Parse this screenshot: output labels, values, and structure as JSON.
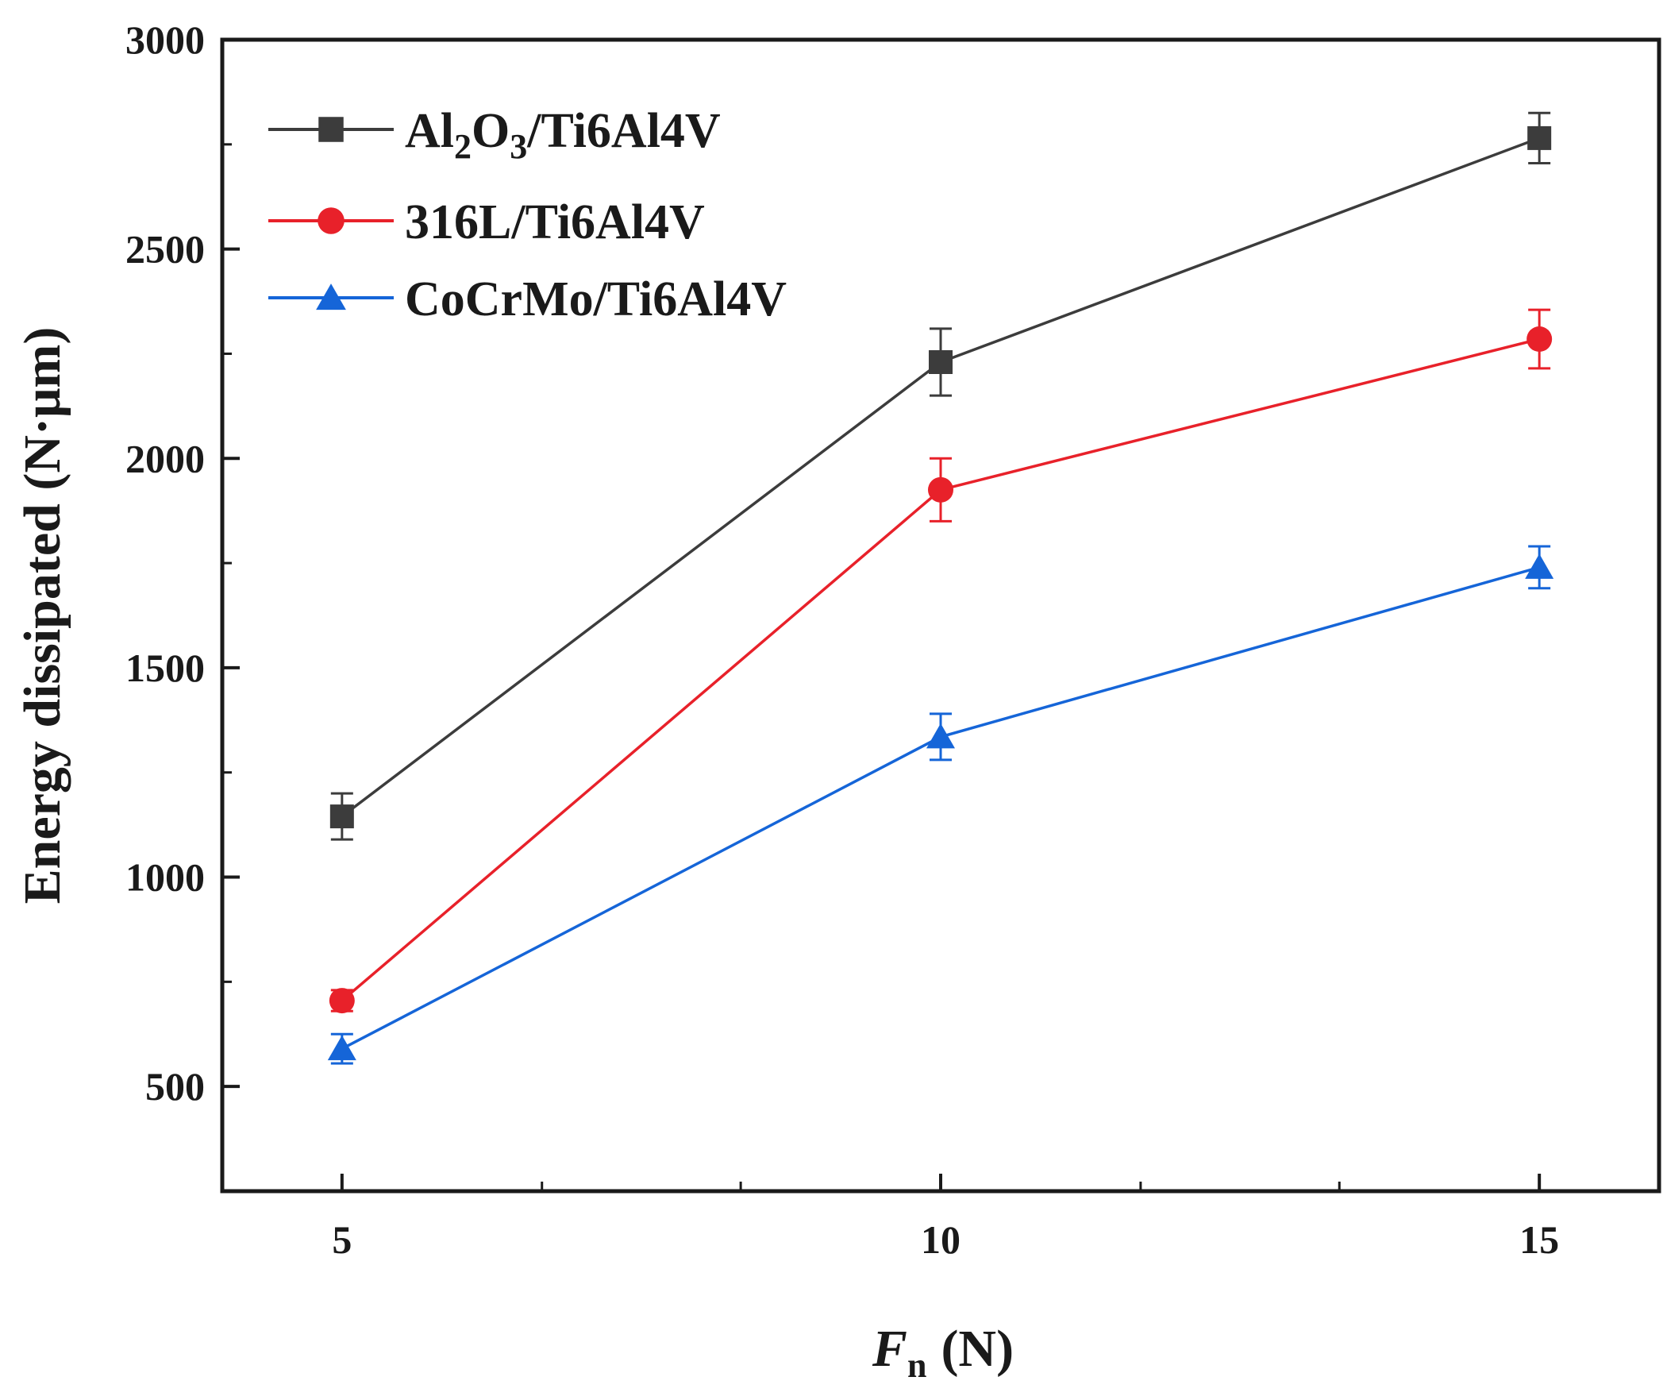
{
  "chart_data": {
    "type": "line",
    "title": "",
    "xlabel": {
      "symbol": "F",
      "subscript": "n",
      "unit": "(N)"
    },
    "ylabel": "Energy dissipated (N·μm)",
    "x": [
      5,
      10,
      15
    ],
    "xlim": [
      4,
      16
    ],
    "ylim": [
      250,
      3000
    ],
    "xticks": [
      5,
      10,
      15
    ],
    "xticks_minor": [
      6.67,
      8.33,
      11.67,
      13.33
    ],
    "yticks": [
      500,
      1000,
      1500,
      2000,
      2500,
      3000
    ],
    "yticks_minor": [
      750,
      1250,
      1750,
      2250,
      2750
    ],
    "legend_position": "top-left",
    "series": [
      {
        "name": "Al2O3/Ti6Al4V",
        "legend_parts": [
          "Al",
          "2",
          "O",
          "3",
          "/Ti6Al4V"
        ],
        "marker": "square",
        "color": "#3c3c3c",
        "values": [
          1145,
          2230,
          2765
        ],
        "errors": [
          55,
          80,
          60
        ]
      },
      {
        "name": "316L/Ti6Al4V",
        "marker": "circle",
        "color": "#e8212a",
        "values": [
          705,
          1925,
          2285
        ],
        "errors": [
          25,
          75,
          70
        ]
      },
      {
        "name": "CoCrMo/Ti6Al4V",
        "marker": "triangle",
        "color": "#1565d8",
        "values": [
          590,
          1335,
          1740
        ],
        "errors": [
          35,
          55,
          50
        ]
      }
    ]
  }
}
